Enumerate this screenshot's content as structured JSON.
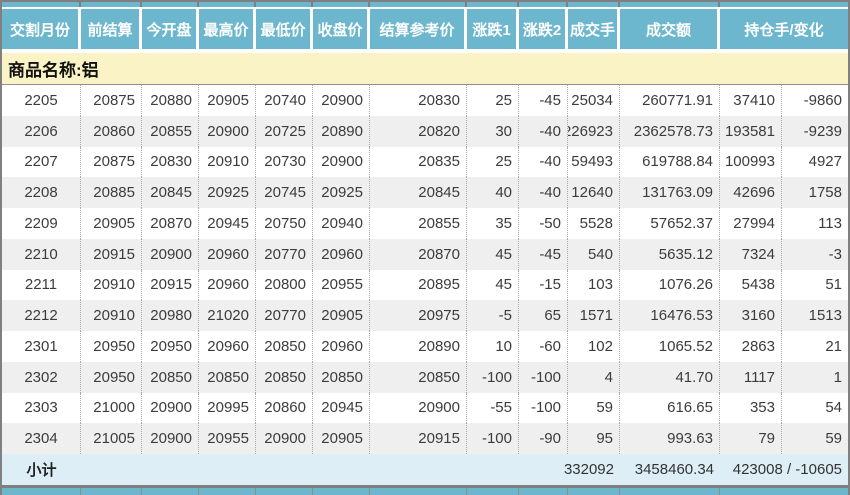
{
  "table": {
    "columns": [
      {
        "label": "交割月份"
      },
      {
        "label": "前结算"
      },
      {
        "label": "今开盘"
      },
      {
        "label": "最高价"
      },
      {
        "label": "最低价"
      },
      {
        "label": "收盘价"
      },
      {
        "label": "结算参考价"
      },
      {
        "label": "涨跌1"
      },
      {
        "label": "涨跌2"
      },
      {
        "label": "成交手"
      },
      {
        "label": "成交额"
      },
      {
        "label": "持仓手/变化"
      }
    ],
    "group_title": "商品名称:铝",
    "rows": [
      [
        "2205",
        "20875",
        "20880",
        "20905",
        "20740",
        "20900",
        "20830",
        "25",
        "-45",
        "25034",
        "260771.91",
        "37410",
        "-9860"
      ],
      [
        "2206",
        "20860",
        "20855",
        "20900",
        "20725",
        "20890",
        "20820",
        "30",
        "-40",
        "226923",
        "2362578.73",
        "193581",
        "-9239"
      ],
      [
        "2207",
        "20875",
        "20830",
        "20910",
        "20730",
        "20900",
        "20835",
        "25",
        "-40",
        "59493",
        "619788.84",
        "100993",
        "4927"
      ],
      [
        "2208",
        "20885",
        "20845",
        "20925",
        "20745",
        "20925",
        "20845",
        "40",
        "-40",
        "12640",
        "131763.09",
        "42696",
        "1758"
      ],
      [
        "2209",
        "20905",
        "20870",
        "20945",
        "20750",
        "20940",
        "20855",
        "35",
        "-50",
        "5528",
        "57652.37",
        "27994",
        "113"
      ],
      [
        "2210",
        "20915",
        "20900",
        "20960",
        "20770",
        "20960",
        "20870",
        "45",
        "-45",
        "540",
        "5635.12",
        "7324",
        "-3"
      ],
      [
        "2211",
        "20910",
        "20915",
        "20960",
        "20800",
        "20955",
        "20895",
        "45",
        "-15",
        "103",
        "1076.26",
        "5438",
        "51"
      ],
      [
        "2212",
        "20910",
        "20980",
        "21020",
        "20770",
        "20905",
        "20975",
        "-5",
        "65",
        "1571",
        "16476.53",
        "3160",
        "1513"
      ],
      [
        "2301",
        "20950",
        "20950",
        "20960",
        "20850",
        "20960",
        "20890",
        "10",
        "-60",
        "102",
        "1065.52",
        "2863",
        "21"
      ],
      [
        "2302",
        "20950",
        "20850",
        "20850",
        "20850",
        "20850",
        "20850",
        "-100",
        "-100",
        "4",
        "41.70",
        "1117",
        "1"
      ],
      [
        "2303",
        "21000",
        "20900",
        "20995",
        "20860",
        "20945",
        "20900",
        "-55",
        "-100",
        "59",
        "616.65",
        "353",
        "54"
      ],
      [
        "2304",
        "21005",
        "20900",
        "20955",
        "20900",
        "20905",
        "20915",
        "-100",
        "-90",
        "95",
        "993.63",
        "79",
        "59"
      ]
    ],
    "subtotal": {
      "label": "小计",
      "volume": "332092",
      "turnover": "3458460.34",
      "oi_change": "423008 / -10605"
    }
  },
  "colors": {
    "header_bg": "#6CB7CE",
    "group_row_bg": "#FAF3C5",
    "row_alt_bg": "#EFEFEF",
    "subtotal_bg": "#DDEEF7",
    "frame_gray": "#7F7F7F",
    "header_text": "#FFFFFF",
    "data_text": "#3C3C3C"
  }
}
